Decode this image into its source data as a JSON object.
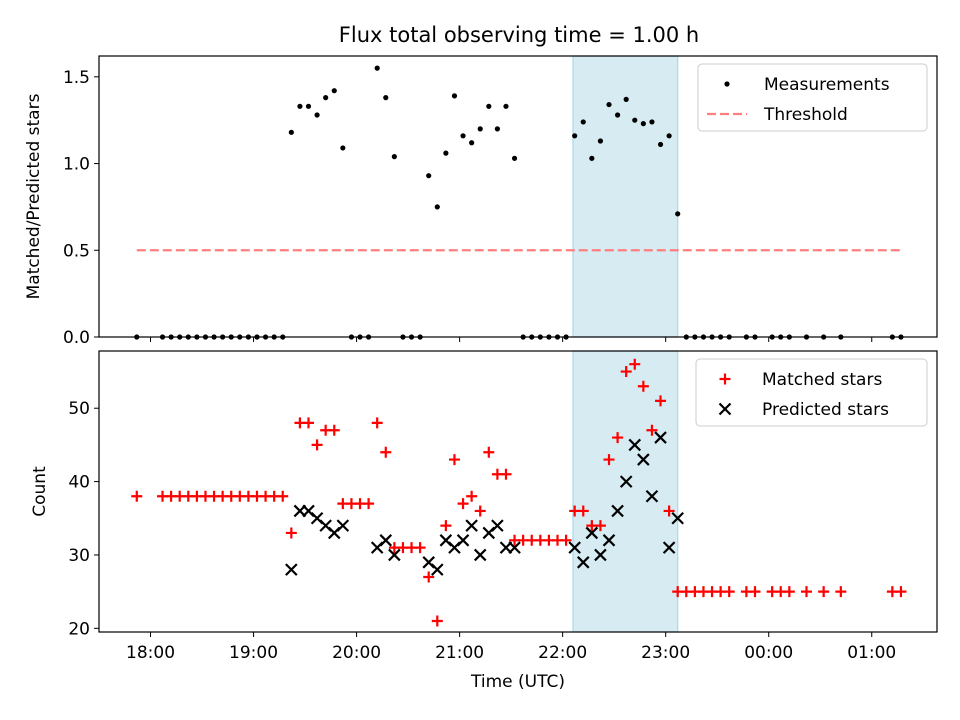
{
  "figure_title": "Flux total observing time = 1.00 h",
  "colors": {
    "measurement": "#000000",
    "threshold": "#ff7f7f",
    "matched": "#ff0000",
    "predicted": "#000000",
    "highlight": "#add8e6"
  },
  "chart_data": [
    {
      "type": "scatter",
      "panel": "top",
      "title": "Flux total observing time = 1.00 h",
      "xlabel": "",
      "ylabel": "Matched/Predicted stars",
      "xlim": [
        "17:30",
        "01:38"
      ],
      "ylim": [
        0,
        1.62
      ],
      "yticks": [
        0.0,
        0.5,
        1.0,
        1.5
      ],
      "ytick_labels": [
        "0.0",
        "0.5",
        "1.0",
        "1.5"
      ],
      "grid": false,
      "legend": {
        "placement": "top-right",
        "entries": [
          "Measurements",
          "Threshold"
        ]
      },
      "highlight_span": [
        "22:06",
        "23:07"
      ],
      "series": [
        {
          "name": "Measurements",
          "kind": "scatter",
          "marker": "dot",
          "points": [
            [
              "17:52",
              0.0
            ],
            [
              "18:07",
              0.0
            ],
            [
              "18:12",
              0.0
            ],
            [
              "18:17",
              0.0
            ],
            [
              "18:22",
              0.0
            ],
            [
              "18:27",
              0.0
            ],
            [
              "18:32",
              0.0
            ],
            [
              "18:37",
              0.0
            ],
            [
              "18:42",
              0.0
            ],
            [
              "18:47",
              0.0
            ],
            [
              "18:52",
              0.0
            ],
            [
              "18:57",
              0.0
            ],
            [
              "19:02",
              0.0
            ],
            [
              "19:07",
              0.0
            ],
            [
              "19:12",
              0.0
            ],
            [
              "19:17",
              0.0
            ],
            [
              "19:22",
              1.18
            ],
            [
              "19:27",
              1.33
            ],
            [
              "19:32",
              1.33
            ],
            [
              "19:37",
              1.28
            ],
            [
              "19:42",
              1.38
            ],
            [
              "19:47",
              1.42
            ],
            [
              "19:52",
              1.09
            ],
            [
              "19:57",
              0.0
            ],
            [
              "20:02",
              0.0
            ],
            [
              "20:07",
              0.0
            ],
            [
              "20:12",
              1.55
            ],
            [
              "20:17",
              1.38
            ],
            [
              "20:22",
              1.04
            ],
            [
              "20:27",
              0.0
            ],
            [
              "20:32",
              0.0
            ],
            [
              "20:37",
              0.0
            ],
            [
              "20:42",
              0.93
            ],
            [
              "20:47",
              0.75
            ],
            [
              "20:52",
              1.06
            ],
            [
              "20:57",
              1.39
            ],
            [
              "21:02",
              1.16
            ],
            [
              "21:07",
              1.12
            ],
            [
              "21:12",
              1.2
            ],
            [
              "21:17",
              1.33
            ],
            [
              "21:22",
              1.2
            ],
            [
              "21:27",
              1.33
            ],
            [
              "21:32",
              1.03
            ],
            [
              "21:37",
              0.0
            ],
            [
              "21:42",
              0.0
            ],
            [
              "21:47",
              0.0
            ],
            [
              "21:52",
              0.0
            ],
            [
              "21:57",
              0.0
            ],
            [
              "22:02",
              0.0
            ],
            [
              "22:07",
              1.16
            ],
            [
              "22:12",
              1.24
            ],
            [
              "22:17",
              1.03
            ],
            [
              "22:22",
              1.13
            ],
            [
              "22:27",
              1.34
            ],
            [
              "22:32",
              1.28
            ],
            [
              "22:37",
              1.37
            ],
            [
              "22:42",
              1.25
            ],
            [
              "22:47",
              1.23
            ],
            [
              "22:52",
              1.24
            ],
            [
              "22:57",
              1.11
            ],
            [
              "23:02",
              1.16
            ],
            [
              "23:07",
              0.71
            ],
            [
              "23:12",
              0.0
            ],
            [
              "23:17",
              0.0
            ],
            [
              "23:22",
              0.0
            ],
            [
              "23:27",
              0.0
            ],
            [
              "23:32",
              0.0
            ],
            [
              "23:37",
              0.0
            ],
            [
              "23:47",
              0.0
            ],
            [
              "23:52",
              0.0
            ],
            [
              "00:02",
              0.0
            ],
            [
              "00:07",
              0.0
            ],
            [
              "00:12",
              0.0
            ],
            [
              "00:22",
              0.0
            ],
            [
              "00:32",
              0.0
            ],
            [
              "00:42",
              0.0
            ],
            [
              "01:12",
              0.0
            ],
            [
              "01:17",
              0.0
            ]
          ]
        },
        {
          "name": "Threshold",
          "kind": "line",
          "style": "dashed",
          "points": [
            [
              "17:52",
              0.5
            ],
            [
              "01:17",
              0.5
            ]
          ]
        }
      ]
    },
    {
      "type": "scatter",
      "panel": "bottom",
      "title": "",
      "xlabel": "Time (UTC)",
      "ylabel": "Count",
      "xlim": [
        "17:30",
        "01:38"
      ],
      "ylim": [
        19.5,
        57.8
      ],
      "yticks": [
        20,
        30,
        40,
        50
      ],
      "ytick_labels": [
        "20",
        "30",
        "40",
        "50"
      ],
      "xtick_labels": [
        "18:00",
        "19:00",
        "20:00",
        "21:00",
        "22:00",
        "23:00",
        "00:00",
        "01:00"
      ],
      "grid": false,
      "legend": {
        "placement": "top-right",
        "entries": [
          "Matched stars",
          "Predicted stars"
        ]
      },
      "highlight_span": [
        "22:06",
        "23:07"
      ],
      "series": [
        {
          "name": "Matched stars",
          "kind": "scatter",
          "marker": "plus",
          "points": [
            [
              "17:52",
              38
            ],
            [
              "18:07",
              38
            ],
            [
              "18:12",
              38
            ],
            [
              "18:17",
              38
            ],
            [
              "18:22",
              38
            ],
            [
              "18:27",
              38
            ],
            [
              "18:32",
              38
            ],
            [
              "18:37",
              38
            ],
            [
              "18:42",
              38
            ],
            [
              "18:47",
              38
            ],
            [
              "18:52",
              38
            ],
            [
              "18:57",
              38
            ],
            [
              "19:02",
              38
            ],
            [
              "19:07",
              38
            ],
            [
              "19:12",
              38
            ],
            [
              "19:17",
              38
            ],
            [
              "19:22",
              33
            ],
            [
              "19:27",
              48
            ],
            [
              "19:32",
              48
            ],
            [
              "19:37",
              45
            ],
            [
              "19:42",
              47
            ],
            [
              "19:47",
              47
            ],
            [
              "19:52",
              37
            ],
            [
              "19:57",
              37
            ],
            [
              "20:02",
              37
            ],
            [
              "20:07",
              37
            ],
            [
              "20:12",
              48
            ],
            [
              "20:17",
              44
            ],
            [
              "20:22",
              31
            ],
            [
              "20:27",
              31
            ],
            [
              "20:32",
              31
            ],
            [
              "20:37",
              31
            ],
            [
              "20:42",
              27
            ],
            [
              "20:47",
              21
            ],
            [
              "20:52",
              34
            ],
            [
              "20:57",
              43
            ],
            [
              "21:02",
              37
            ],
            [
              "21:07",
              38
            ],
            [
              "21:12",
              36
            ],
            [
              "21:17",
              44
            ],
            [
              "21:22",
              41
            ],
            [
              "21:27",
              41
            ],
            [
              "21:32",
              32
            ],
            [
              "21:37",
              32
            ],
            [
              "21:42",
              32
            ],
            [
              "21:47",
              32
            ],
            [
              "21:52",
              32
            ],
            [
              "21:57",
              32
            ],
            [
              "22:02",
              32
            ],
            [
              "22:07",
              36
            ],
            [
              "22:12",
              36
            ],
            [
              "22:17",
              34
            ],
            [
              "22:22",
              34
            ],
            [
              "22:27",
              43
            ],
            [
              "22:32",
              46
            ],
            [
              "22:37",
              55
            ],
            [
              "22:42",
              56
            ],
            [
              "22:47",
              53
            ],
            [
              "22:52",
              47
            ],
            [
              "22:57",
              51
            ],
            [
              "23:02",
              36
            ],
            [
              "23:07",
              25
            ],
            [
              "23:12",
              25
            ],
            [
              "23:17",
              25
            ],
            [
              "23:22",
              25
            ],
            [
              "23:27",
              25
            ],
            [
              "23:32",
              25
            ],
            [
              "23:37",
              25
            ],
            [
              "23:47",
              25
            ],
            [
              "23:52",
              25
            ],
            [
              "00:02",
              25
            ],
            [
              "00:07",
              25
            ],
            [
              "00:12",
              25
            ],
            [
              "00:22",
              25
            ],
            [
              "00:32",
              25
            ],
            [
              "00:42",
              25
            ],
            [
              "01:12",
              25
            ],
            [
              "01:17",
              25
            ]
          ]
        },
        {
          "name": "Predicted stars",
          "kind": "scatter",
          "marker": "x",
          "points": [
            [
              "19:22",
              28
            ],
            [
              "19:27",
              36
            ],
            [
              "19:32",
              36
            ],
            [
              "19:37",
              35
            ],
            [
              "19:42",
              34
            ],
            [
              "19:47",
              33
            ],
            [
              "19:52",
              34
            ],
            [
              "20:12",
              31
            ],
            [
              "20:17",
              32
            ],
            [
              "20:22",
              30
            ],
            [
              "20:42",
              29
            ],
            [
              "20:47",
              28
            ],
            [
              "20:52",
              32
            ],
            [
              "20:57",
              31
            ],
            [
              "21:02",
              32
            ],
            [
              "21:07",
              34
            ],
            [
              "21:12",
              30
            ],
            [
              "21:17",
              33
            ],
            [
              "21:22",
              34
            ],
            [
              "21:27",
              31
            ],
            [
              "21:32",
              31
            ],
            [
              "22:07",
              31
            ],
            [
              "22:12",
              29
            ],
            [
              "22:17",
              33
            ],
            [
              "22:22",
              30
            ],
            [
              "22:27",
              32
            ],
            [
              "22:32",
              36
            ],
            [
              "22:37",
              40
            ],
            [
              "22:42",
              45
            ],
            [
              "22:47",
              43
            ],
            [
              "22:52",
              38
            ],
            [
              "22:57",
              46
            ],
            [
              "23:02",
              31
            ],
            [
              "23:07",
              35
            ]
          ]
        }
      ]
    }
  ]
}
